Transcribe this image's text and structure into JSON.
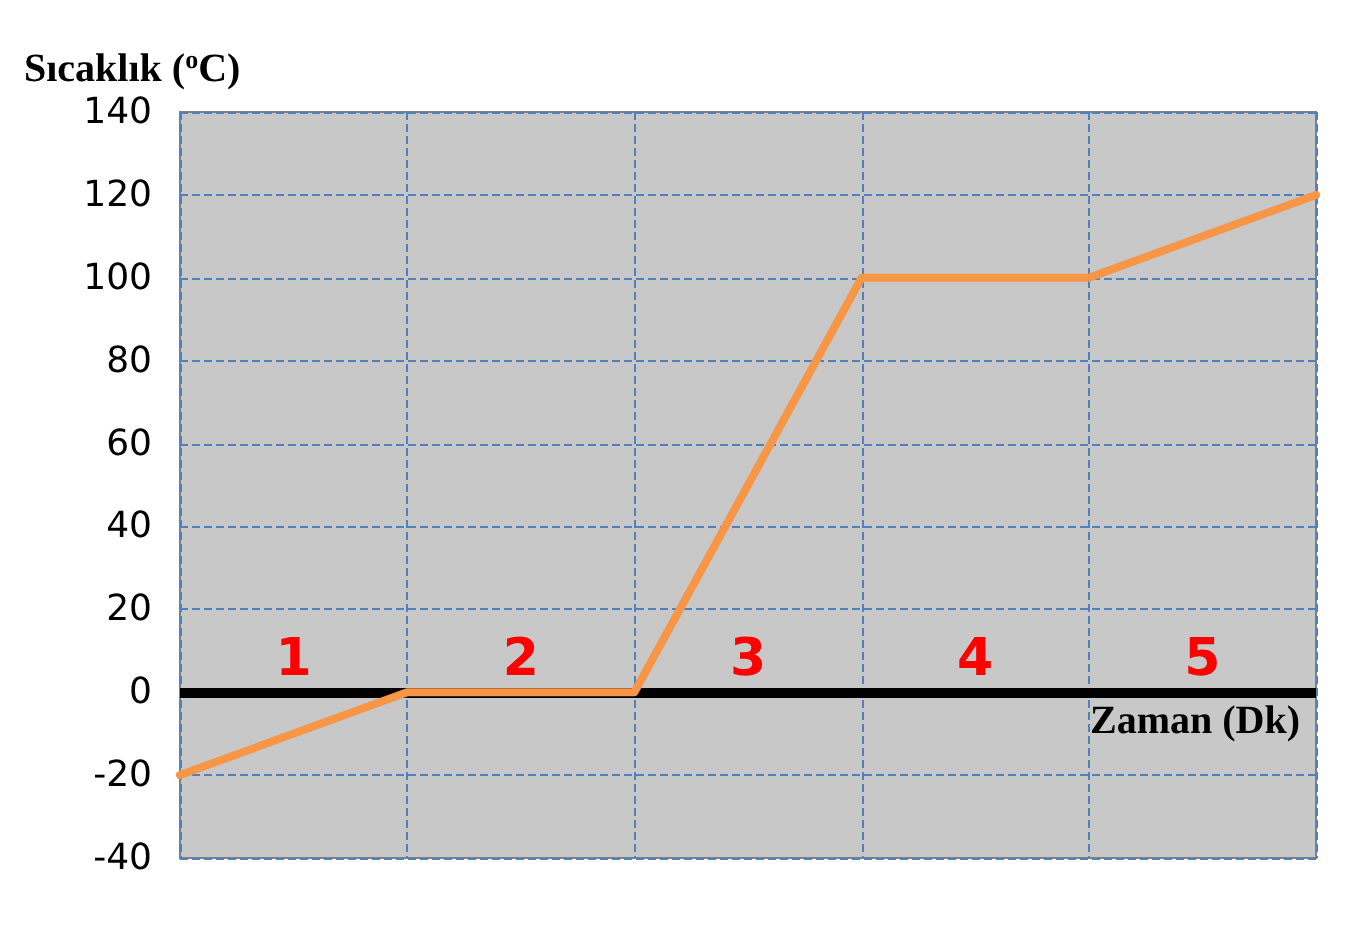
{
  "chart_data": {
    "type": "line",
    "ylabel": "Sıcaklık ($^{o}$C)",
    "xlabel": "Zaman (Dk)",
    "categories": [
      null,
      null,
      null,
      null,
      null,
      null
    ],
    "series": [
      {
        "color": "#f79646",
        "values": [
          -20,
          0,
          0,
          100,
          100,
          120
        ]
      }
    ],
    "ylim": [
      -40,
      140
    ],
    "yticks": [
      -40,
      -20,
      0,
      20,
      40,
      60,
      80,
      100,
      120,
      140
    ],
    "grid": true,
    "marker": "none",
    "line_style": "solid",
    "ref_lines": [
      {
        "axis": "y",
        "value": 0,
        "color": "#000000"
      }
    ],
    "annotations": [
      "1",
      "2",
      "3",
      "4",
      "5"
    ]
  }
}
